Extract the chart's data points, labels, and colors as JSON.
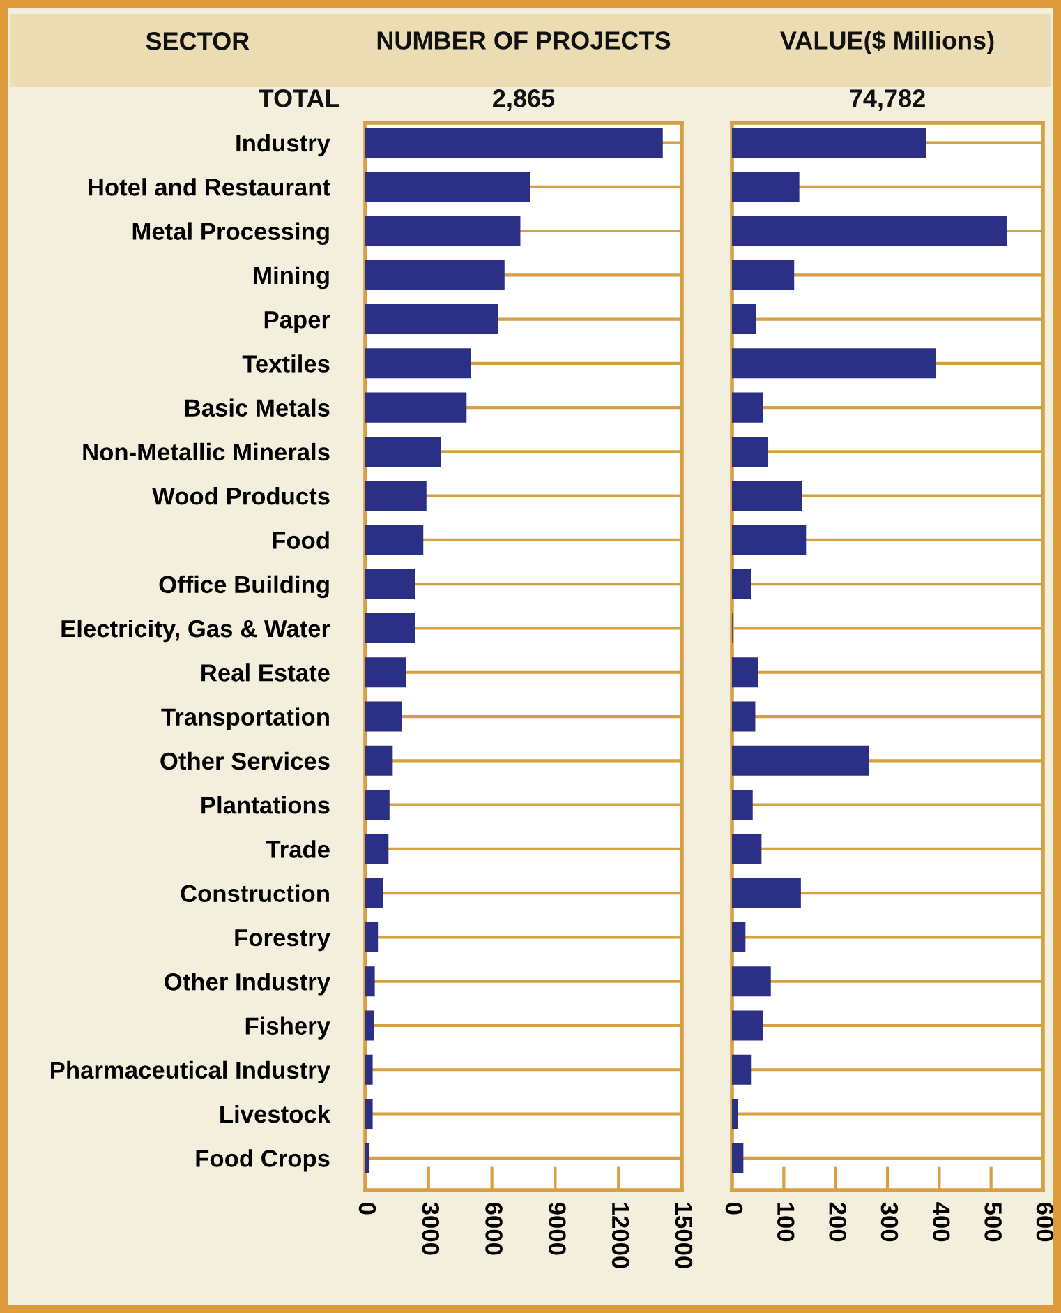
{
  "chart_data": [
    {
      "type": "bar",
      "orientation": "horizontal",
      "title": "NUMBER OF PROJECTS",
      "ylabel": "SECTOR",
      "categories": [
        "Industry",
        "Hotel and Restaurant",
        "Metal Processing",
        "Mining",
        "Paper",
        "Textiles",
        "Basic Metals",
        "Non-Metallic Minerals",
        "Wood Products",
        "Food",
        "Office Building",
        "Electricity, Gas & Water",
        "Real Estate",
        "Transportation",
        "Other Services",
        "Plantations",
        "Trade",
        "Construction",
        "Forestry",
        "Other Industry",
        "Fishery",
        "Pharmaceutical Industry",
        "Livestock",
        "Food Crops"
      ],
      "values": [
        14100,
        7800,
        7350,
        6600,
        6300,
        5000,
        4800,
        3600,
        2900,
        2750,
        2350,
        2350,
        1950,
        1750,
        1300,
        1150,
        1100,
        850,
        600,
        450,
        400,
        350,
        350,
        200
      ],
      "color": "#2b2f86",
      "xlim": [
        0,
        15000
      ],
      "xticks": [
        0,
        3000,
        6000,
        9000,
        12000,
        15000
      ],
      "grid": "y",
      "annotations": [
        "TOTAL",
        "2,865"
      ]
    },
    {
      "type": "bar",
      "orientation": "horizontal",
      "title": "VALUE($ Millions)",
      "categories": [
        null,
        null,
        null,
        null,
        null,
        null,
        null,
        null,
        null,
        null,
        null,
        null,
        null,
        null,
        null,
        null,
        null,
        null,
        null,
        null,
        null,
        null,
        null,
        null
      ],
      "values": [
        375,
        130,
        530,
        120,
        47,
        393,
        60,
        70,
        135,
        143,
        37,
        1,
        50,
        45,
        264,
        40,
        57,
        133,
        26,
        75,
        60,
        38,
        12,
        22
      ],
      "color": "#2b2f86",
      "xlim": [
        0,
        600
      ],
      "xticks": [
        0,
        100,
        200,
        300,
        400,
        500,
        600
      ],
      "grid": "y",
      "tick_labels": "x",
      "annotations": [
        "74,782"
      ]
    }
  ]
}
